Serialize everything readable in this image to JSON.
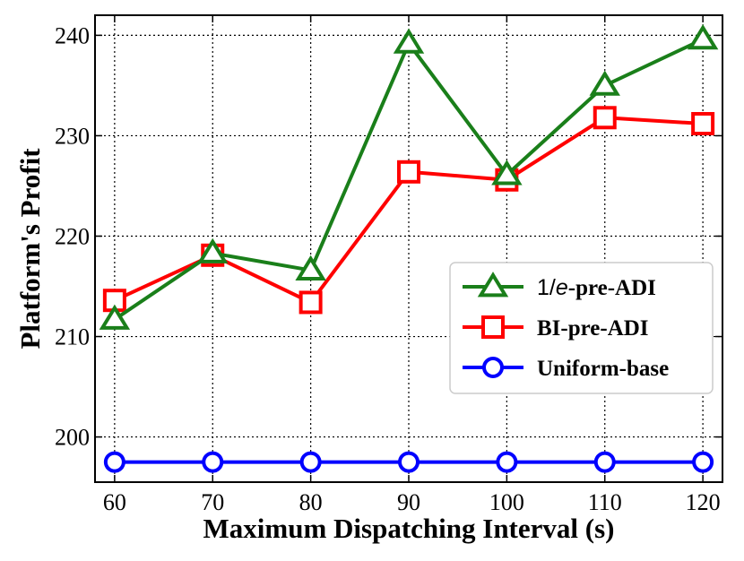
{
  "chart_data": {
    "type": "line",
    "xlabel": "Maximum Dispatching Interval (s)",
    "ylabel": "Platform's Profit",
    "x": [
      60,
      70,
      80,
      90,
      100,
      110,
      120
    ],
    "xlim": [
      58,
      122
    ],
    "ylim": [
      195.5,
      242
    ],
    "xticks": [
      60,
      70,
      80,
      90,
      100,
      110,
      120
    ],
    "yticks": [
      200,
      210,
      220,
      230,
      240
    ],
    "grid": true,
    "legend_position": "right",
    "series": [
      {
        "name": "1/e-pre-ADI",
        "legend_prefix": "1/",
        "legend_italic": "e",
        "legend_suffix": "-pre-ADI",
        "color": "#1a7f1a",
        "marker": "triangle",
        "values": [
          211.7,
          218.3,
          216.6,
          239.2,
          226.1,
          235.0,
          239.6
        ]
      },
      {
        "name": "BI-pre-ADI",
        "color": "#ff0000",
        "marker": "square",
        "values": [
          213.6,
          218.1,
          213.4,
          226.4,
          225.6,
          231.8,
          231.2
        ]
      },
      {
        "name": "Uniform-base",
        "color": "#0000ff",
        "marker": "circle",
        "values": [
          197.5,
          197.5,
          197.5,
          197.5,
          197.5,
          197.5,
          197.5
        ]
      }
    ]
  }
}
